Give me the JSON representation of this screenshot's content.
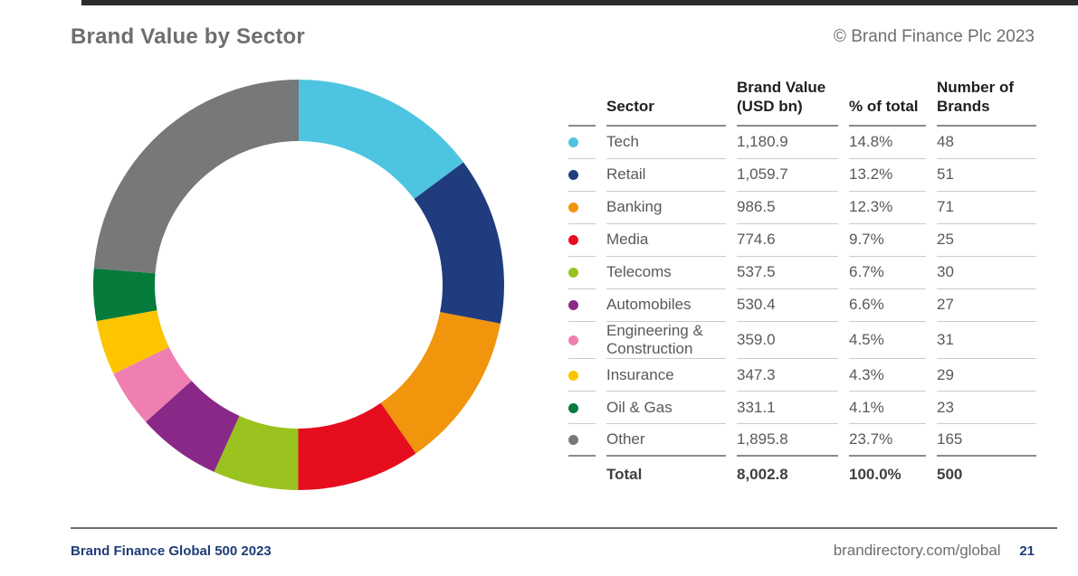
{
  "page": {
    "title": "Brand Value by Sector",
    "copyright": "© Brand Finance Plc 2023",
    "footer": {
      "left_label": "Brand Finance Global 500 2023",
      "right_url": "brandirectory.com/global",
      "page_number": "21"
    }
  },
  "table": {
    "headers": {
      "sector": "Sector",
      "brand_value": "Brand Value (USD bn)",
      "pct_of_total": "% of total",
      "num_brands": "Number of Brands"
    },
    "rows": [
      {
        "sector": "Tech",
        "brand_value": "1,180.9",
        "pct_of_total": "14.8%",
        "num_brands": "48",
        "color": "#4ec5e0"
      },
      {
        "sector": "Retail",
        "brand_value": "1,059.7",
        "pct_of_total": "13.2%",
        "num_brands": "51",
        "color": "#203c7e"
      },
      {
        "sector": "Banking",
        "brand_value": "986.5",
        "pct_of_total": "12.3%",
        "num_brands": "71",
        "color": "#f0950c"
      },
      {
        "sector": "Media",
        "brand_value": "774.6",
        "pct_of_total": "9.7%",
        "num_brands": "25",
        "color": "#e60e1e"
      },
      {
        "sector": "Telecoms",
        "brand_value": "537.5",
        "pct_of_total": "6.7%",
        "num_brands": "30",
        "color": "#9ac31f"
      },
      {
        "sector": "Automobiles",
        "brand_value": "530.4",
        "pct_of_total": "6.6%",
        "num_brands": "27",
        "color": "#8a2888"
      },
      {
        "sector": "Engineering & Construction",
        "brand_value": "359.0",
        "pct_of_total": "4.5%",
        "num_brands": "31",
        "color": "#ee7fb0"
      },
      {
        "sector": "Insurance",
        "brand_value": "347.3",
        "pct_of_total": "4.3%",
        "num_brands": "29",
        "color": "#fcc500"
      },
      {
        "sector": "Oil & Gas",
        "brand_value": "331.1",
        "pct_of_total": "4.1%",
        "num_brands": "23",
        "color": "#057b3c"
      },
      {
        "sector": "Other",
        "brand_value": "1,895.8",
        "pct_of_total": "23.7%",
        "num_brands": "165",
        "color": "#77787a"
      }
    ],
    "total": {
      "label": "Total",
      "brand_value": "8,002.8",
      "pct_of_total": "100.0%",
      "num_brands": "500"
    }
  },
  "chart_data": {
    "type": "pie",
    "subtype": "donut",
    "title": "Brand Value by Sector",
    "unit": "USD bn",
    "categories": [
      "Tech",
      "Retail",
      "Banking",
      "Media",
      "Telecoms",
      "Automobiles",
      "Engineering & Construction",
      "Insurance",
      "Oil & Gas",
      "Other"
    ],
    "values": [
      1180.9,
      1059.7,
      986.5,
      774.6,
      537.5,
      530.4,
      359.0,
      347.3,
      331.1,
      1895.8
    ],
    "percentages": [
      14.8,
      13.2,
      12.3,
      9.7,
      6.7,
      6.6,
      4.5,
      4.3,
      4.1,
      23.7
    ],
    "brand_counts": [
      48,
      51,
      71,
      25,
      30,
      27,
      31,
      29,
      23,
      165
    ],
    "colors": [
      "#4ec5e0",
      "#203c7e",
      "#f0950c",
      "#e60e1e",
      "#9ac31f",
      "#8a2888",
      "#ee7fb0",
      "#fcc500",
      "#057b3c",
      "#77787a"
    ],
    "total": {
      "value": 8002.8,
      "percent": 100.0,
      "brands": 500
    },
    "start_angle_deg": 0,
    "direction": "clockwise",
    "inner_radius_ratio": 0.7,
    "legend_position": "none"
  }
}
